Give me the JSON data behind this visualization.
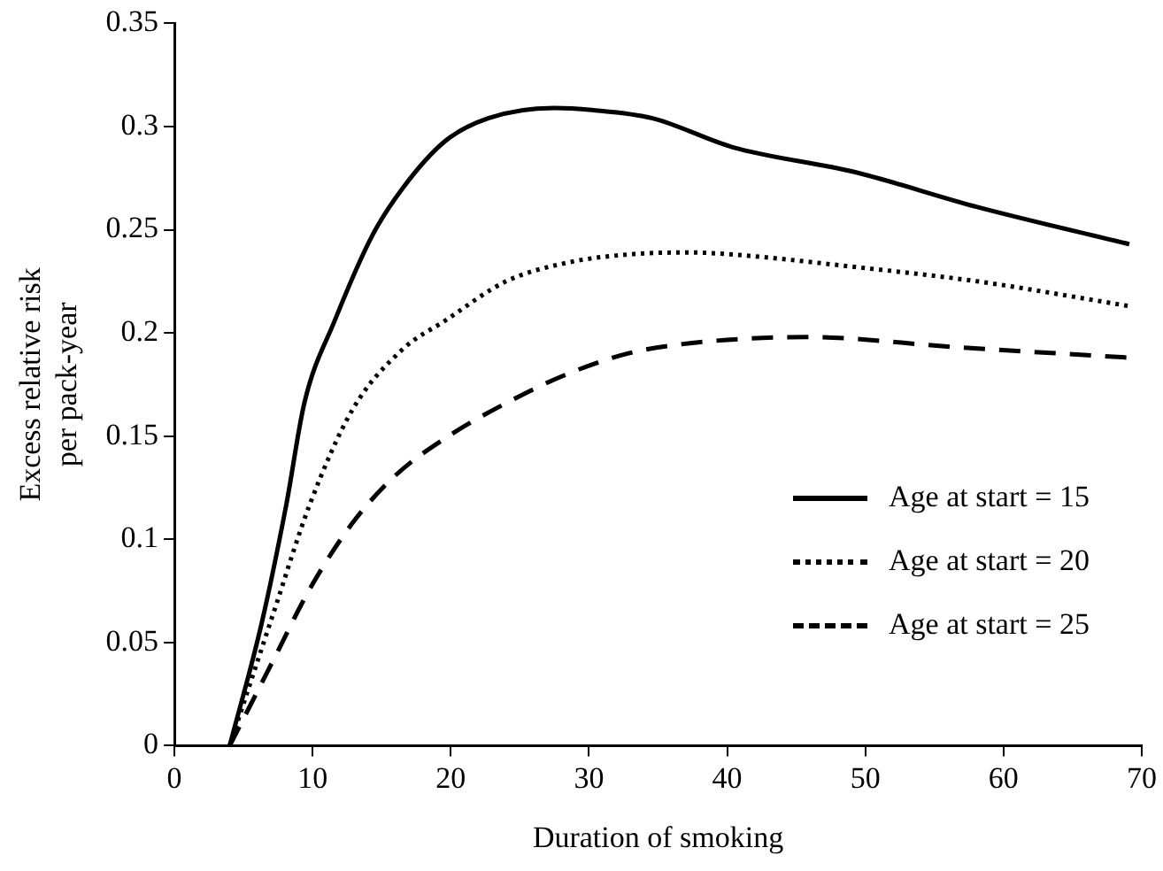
{
  "chart_data": {
    "type": "line",
    "xlabel": "Duration of smoking",
    "ylabel": "Excess relative risk per pack-year",
    "xlim": [
      0,
      70
    ],
    "xticks": [
      0,
      10,
      20,
      30,
      40,
      50,
      60,
      70
    ],
    "ylim": [
      0,
      0.35
    ],
    "yticks": [
      0,
      0.05,
      0.1,
      0.15,
      0.2,
      0.25,
      0.3,
      0.35
    ],
    "grid": false,
    "legend": "bottom right",
    "marker": "none",
    "series": [
      {
        "name": "Age at start = 15",
        "color": "#000000",
        "line_style": "solid",
        "x": [
          4,
          6.3,
          8.1,
          9.4,
          11.6,
          14.3,
          16.5,
          19.6,
          22.7,
          27.5,
          30.2,
          34.6,
          40.4,
          49.2,
          58.1,
          69.1
        ],
        "values": [
          0,
          0.059,
          0.117,
          0.166,
          0.206,
          0.247,
          0.27,
          0.293,
          0.304,
          0.309,
          0.308,
          0.304,
          0.29,
          0.278,
          0.261,
          0.243
        ]
      },
      {
        "name": "Age at start = 20",
        "color": "#000000",
        "line_style": "dotted",
        "x": [
          4,
          7.2,
          9.8,
          12.9,
          16.5,
          19.6,
          24,
          28.4,
          32.8,
          37.3,
          40.4,
          49.2,
          58.1,
          69.1
        ],
        "values": [
          0,
          0.065,
          0.117,
          0.163,
          0.192,
          0.206,
          0.225,
          0.234,
          0.238,
          0.239,
          0.238,
          0.232,
          0.225,
          0.213
        ]
      },
      {
        "name": "Age at start = 25",
        "color": "#000000",
        "line_style": "dashed",
        "x": [
          4,
          7.2,
          9.8,
          12.9,
          16,
          19.6,
          24,
          28.4,
          32.8,
          37.3,
          45.7,
          56.8,
          69.1
        ],
        "values": [
          0,
          0.042,
          0.076,
          0.108,
          0.131,
          0.149,
          0.166,
          0.18,
          0.19,
          0.195,
          0.198,
          0.193,
          0.188
        ]
      }
    ]
  }
}
